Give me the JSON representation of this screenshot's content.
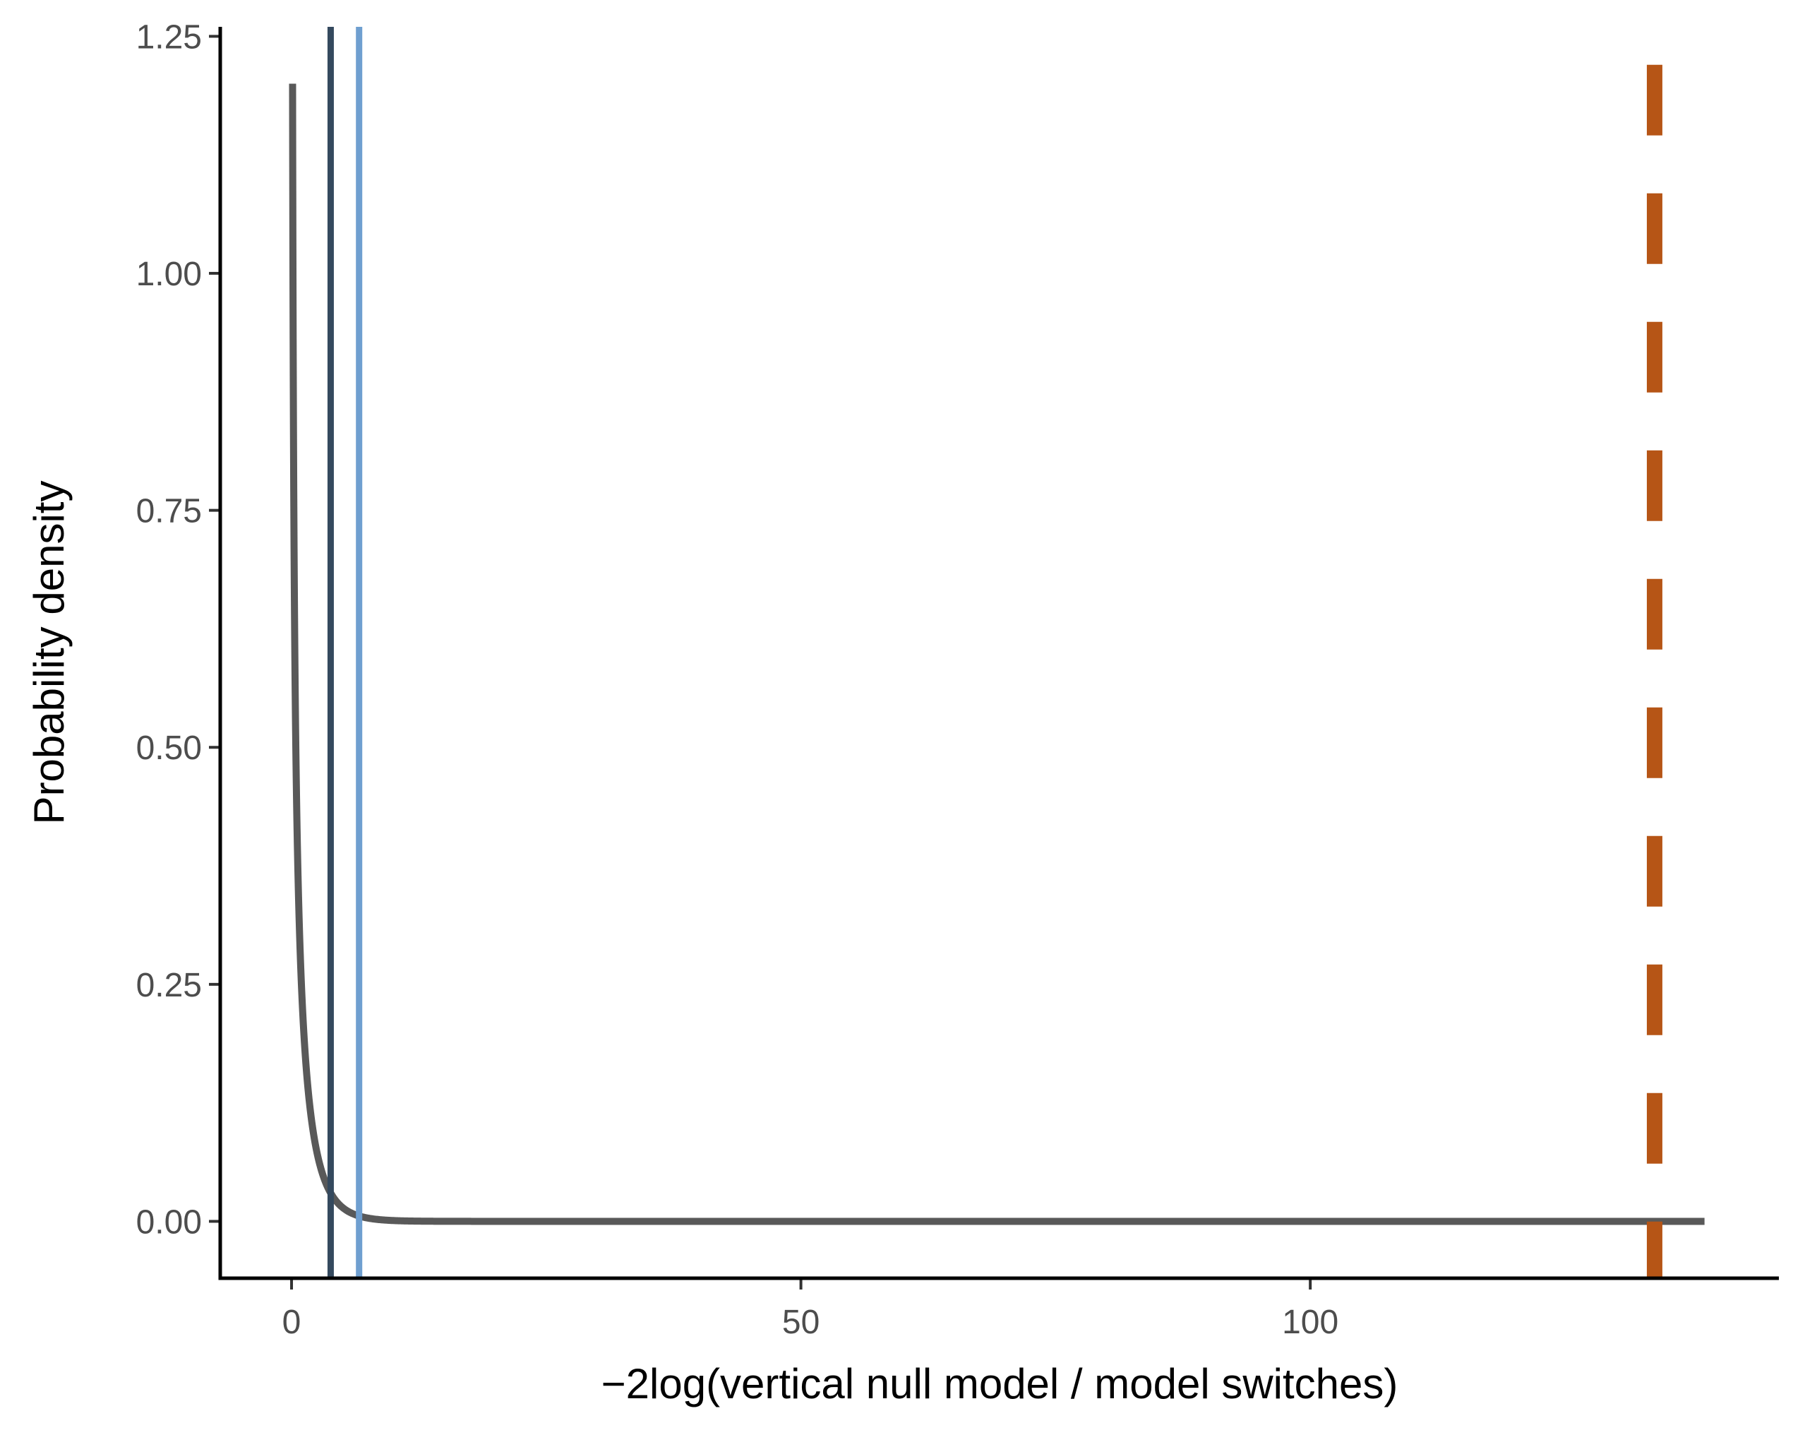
{
  "chart_data": {
    "type": "line",
    "title": "",
    "xlabel": "−2log(vertical null model / model switches)",
    "ylabel": "Probability density",
    "xlim": [
      -7,
      146
    ],
    "ylim": [
      -0.06,
      1.26
    ],
    "x_ticks": [
      {
        "value": 0,
        "label": "0"
      },
      {
        "value": 50,
        "label": "50"
      },
      {
        "value": 100,
        "label": "100"
      }
    ],
    "y_ticks": [
      {
        "value": 0,
        "label": "0.00"
      },
      {
        "value": 0.25,
        "label": "0.25"
      },
      {
        "value": 0.5,
        "label": "0.50"
      },
      {
        "value": 0.75,
        "label": "0.75"
      },
      {
        "value": 1.0,
        "label": "1.00"
      },
      {
        "value": 1.25,
        "label": "1.25"
      }
    ],
    "grid": false,
    "legend": "none",
    "series": [
      {
        "distribution": "chi-squared",
        "df": 1,
        "x_range": [
          0.1,
          138.7
        ],
        "color": "#595959"
      }
    ],
    "reference_lines": [
      {
        "x": 3.84,
        "color": "#34495e",
        "style": "solid"
      },
      {
        "x": 6.63,
        "color": "#6f9fd0",
        "style": "solid"
      },
      {
        "x": 133.8,
        "color": "#b65516",
        "style": "dashed",
        "y_range": [
          -0.06,
          1.22
        ]
      }
    ]
  }
}
